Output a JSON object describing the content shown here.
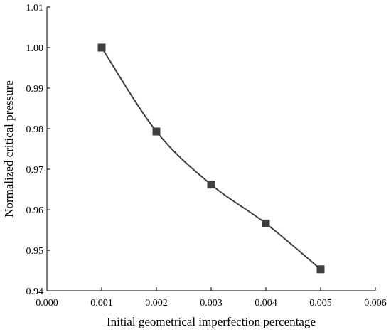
{
  "chart_data": {
    "type": "line",
    "title": "",
    "xlabel": "Initial geometrical imperfection percentage",
    "ylabel": "Normalized critical pressure",
    "xlim": [
      0.0,
      0.006
    ],
    "ylim": [
      0.94,
      1.01
    ],
    "xticks": [
      "0.000",
      "0.001",
      "0.002",
      "0.003",
      "0.004",
      "0.005",
      "0.006"
    ],
    "yticks": [
      "0.94",
      "0.95",
      "0.96",
      "0.97",
      "0.98",
      "0.99",
      "1.00",
      "1.01"
    ],
    "grid": false,
    "legend": "none",
    "series": [
      {
        "x": [
          0.001,
          0.002,
          0.003,
          0.004,
          0.005
        ],
        "y": [
          1.0,
          0.9793,
          0.9662,
          0.9566,
          0.9453
        ],
        "color": "#3f3f3f",
        "marker": "square",
        "smooth": true
      }
    ]
  }
}
